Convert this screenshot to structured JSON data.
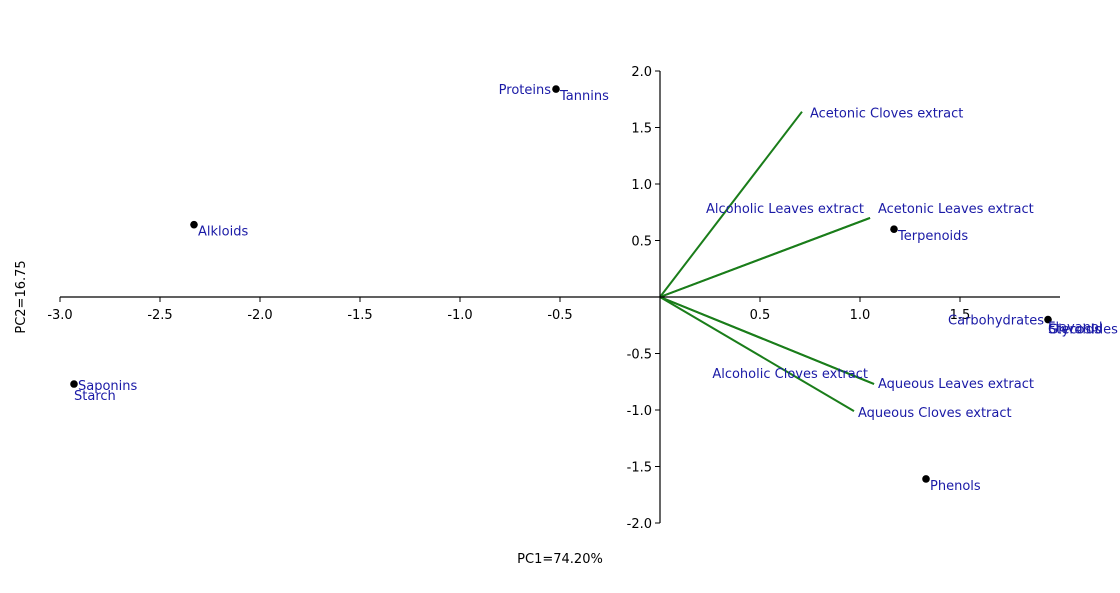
{
  "colors": {
    "axis": "#000000",
    "point": "#000000",
    "label": "#1a1aa6",
    "vector": "#1a7d1a"
  },
  "chart_data": {
    "type": "scatter",
    "subtype": "pca-biplot",
    "title": "",
    "xlabel": "PC1=74.20%",
    "ylabel": "PC2=16.75",
    "xlim": [
      -3.0,
      2.0
    ],
    "ylim": [
      -2.0,
      2.0
    ],
    "x_ticks": [
      "-3.0",
      "-2.5",
      "-2.0",
      "-1.5",
      "-1.0",
      "-0.5",
      "0.5",
      "1.0",
      "1.5"
    ],
    "y_ticks": [
      "2.0",
      "1.5",
      "1.0",
      "0.5",
      "-0.5",
      "-1.0",
      "-1.5",
      "-2.0"
    ],
    "grid": false,
    "legend": "none",
    "points": [
      {
        "x": -0.52,
        "y": 1.84,
        "labels": [
          "Proteins",
          "Tannins"
        ]
      },
      {
        "x": -2.33,
        "y": 0.64,
        "labels": [
          "Alkloids"
        ]
      },
      {
        "x": -2.93,
        "y": -0.77,
        "labels": [
          "Saponins",
          "Starch"
        ]
      },
      {
        "x": 1.17,
        "y": 0.6,
        "labels": [
          "Terpenoids"
        ]
      },
      {
        "x": 1.94,
        "y": -0.2,
        "labels": [
          "Carbohydrates",
          "Flavanol",
          "Glycosides",
          "Steroids"
        ]
      },
      {
        "x": 1.33,
        "y": -1.61,
        "labels": [
          "Phenols"
        ]
      }
    ],
    "vectors": [
      {
        "name": "Acetonic Cloves extract",
        "x": 0.71,
        "y": 1.64
      },
      {
        "name": "Acetonic Leaves extract",
        "x": 1.05,
        "y": 0.7
      },
      {
        "name": "Alcoholic Leaves  extract",
        "x": 1.05,
        "y": 0.7
      },
      {
        "name": "Aqueous Leaves extract",
        "x": 1.07,
        "y": -0.77
      },
      {
        "name": "Alcoholic Cloves extract",
        "x": 1.07,
        "y": -0.77
      },
      {
        "name": "Aqueous Cloves  extract",
        "x": 0.97,
        "y": -1.01
      }
    ]
  }
}
